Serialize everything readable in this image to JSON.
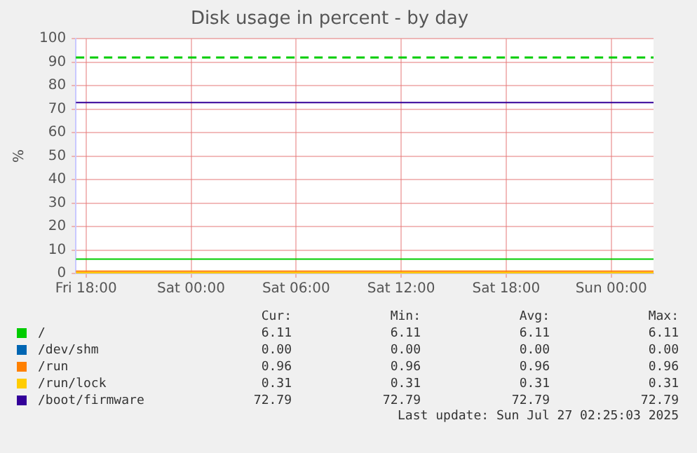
{
  "chart_data": {
    "type": "line",
    "title": "Disk usage in percent - by day",
    "ylabel": "%",
    "x": [
      "2025-07-25T17:25",
      "2025-07-27T02:25"
    ],
    "xlim": [
      "2025-07-25T17:25",
      "2025-07-27T02:25"
    ],
    "xticks": [
      {
        "value": "2025-07-25T18:00",
        "label": "Fri 18:00"
      },
      {
        "value": "2025-07-26T00:00",
        "label": "Sat 00:00"
      },
      {
        "value": "2025-07-26T06:00",
        "label": "Sat 06:00"
      },
      {
        "value": "2025-07-26T12:00",
        "label": "Sat 12:00"
      },
      {
        "value": "2025-07-26T18:00",
        "label": "Sat 18:00"
      },
      {
        "value": "2025-07-27T00:00",
        "label": "Sun 00:00"
      }
    ],
    "ylim": [
      0,
      100
    ],
    "yticks": [
      0,
      10,
      20,
      30,
      40,
      50,
      60,
      70,
      80,
      90,
      100
    ],
    "grid": true,
    "legend": "bottom",
    "series": [
      {
        "name": "/",
        "color": "#00cc00",
        "values": [
          6.11,
          6.11
        ]
      },
      {
        "name": "/dev/shm",
        "color": "#0066b3",
        "values": [
          null,
          null
        ]
      },
      {
        "name": "/run",
        "color": "#ff8000",
        "values": [
          0.96,
          0.96
        ]
      },
      {
        "name": "/run/lock",
        "color": "#ffcc00",
        "values": [
          0.31,
          0.31
        ]
      },
      {
        "name": "/boot/firmware",
        "color": "#330099",
        "values": [
          72.79,
          72.79
        ]
      }
    ],
    "ref_lines": [
      {
        "axis": "y",
        "value": 92,
        "color": "#00cc00",
        "line_style": "dashed"
      }
    ],
    "annotations": [
      "Cur:",
      "Min:",
      "Avg:",
      "Max:",
      "6.11",
      "6.11",
      "6.11",
      "6.11",
      "0.00",
      "0.00",
      "0.00",
      "0.00",
      "0.96",
      "0.96",
      "0.96",
      "0.96",
      "0.31",
      "0.31",
      "0.31",
      "0.31",
      "72.79",
      "72.79",
      "72.79",
      "72.79",
      "Last update: Sun Jul 27 02:25:03 2025"
    ]
  }
}
